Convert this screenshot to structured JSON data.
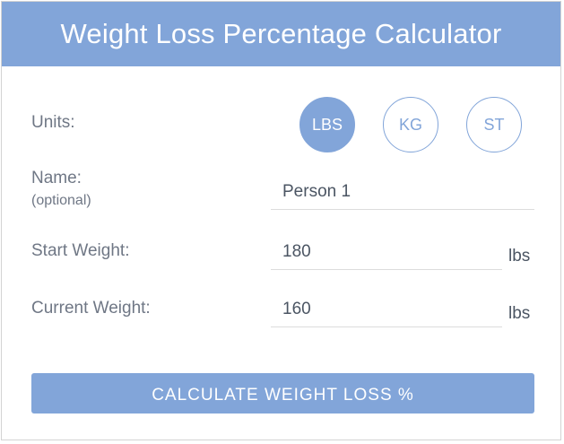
{
  "header": {
    "title": "Weight Loss Percentage Calculator"
  },
  "units": {
    "label": "Units:",
    "options": [
      "LBS",
      "KG",
      "ST"
    ],
    "selected": "LBS"
  },
  "name": {
    "label": "Name:",
    "sublabel": "(optional)",
    "value": "Person 1"
  },
  "start_weight": {
    "label": "Start Weight:",
    "value": "180",
    "unit": "lbs"
  },
  "current_weight": {
    "label": "Current Weight:",
    "value": "160",
    "unit": "lbs"
  },
  "calculate_button": {
    "label": "CALCULATE WEIGHT LOSS %"
  },
  "colors": {
    "accent": "#82a5d9",
    "label_text": "#6f7785",
    "value_text": "#4b5563"
  }
}
